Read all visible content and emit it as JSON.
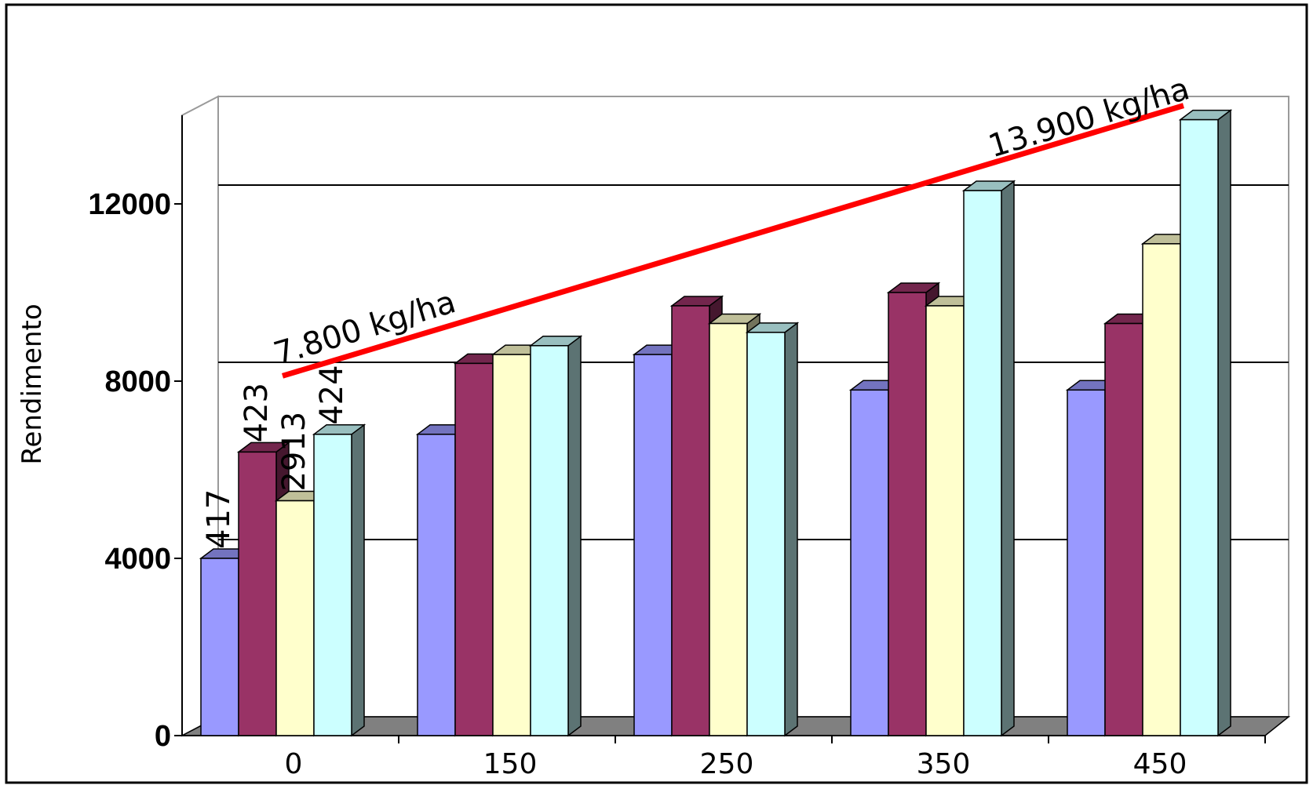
{
  "chart_data": {
    "type": "bar",
    "categories": [
      "0",
      "150",
      "250",
      "350",
      "450"
    ],
    "series": [
      {
        "color": "#9999ff",
        "values": [
          4000,
          6800,
          8600,
          7800,
          7800
        ]
      },
      {
        "color": "#993366",
        "values": [
          6400,
          8400,
          9700,
          10000,
          9300
        ]
      },
      {
        "color": "#ffffcc",
        "values": [
          5300,
          8600,
          9300,
          9700,
          11100
        ]
      },
      {
        "color": "#ccffff",
        "values": [
          6800,
          8800,
          9100,
          12300,
          13900
        ]
      }
    ],
    "data_labels": [
      "417",
      "423",
      "2913",
      "424"
    ],
    "ylabel": "Rendimento",
    "yticks": [
      "0",
      "4000",
      "8000",
      "12000"
    ],
    "ylim": [
      0,
      14000
    ],
    "trend_line": {
      "from": {
        "category": "0",
        "value": 7800
      },
      "to": {
        "category": "450",
        "value": 13900
      },
      "color": "#ff0000",
      "start_label": "7.800 kg/ha",
      "end_label": "13.900 kg/ha"
    },
    "grid": true,
    "legend": "none",
    "style": "3d-clustered-column"
  }
}
